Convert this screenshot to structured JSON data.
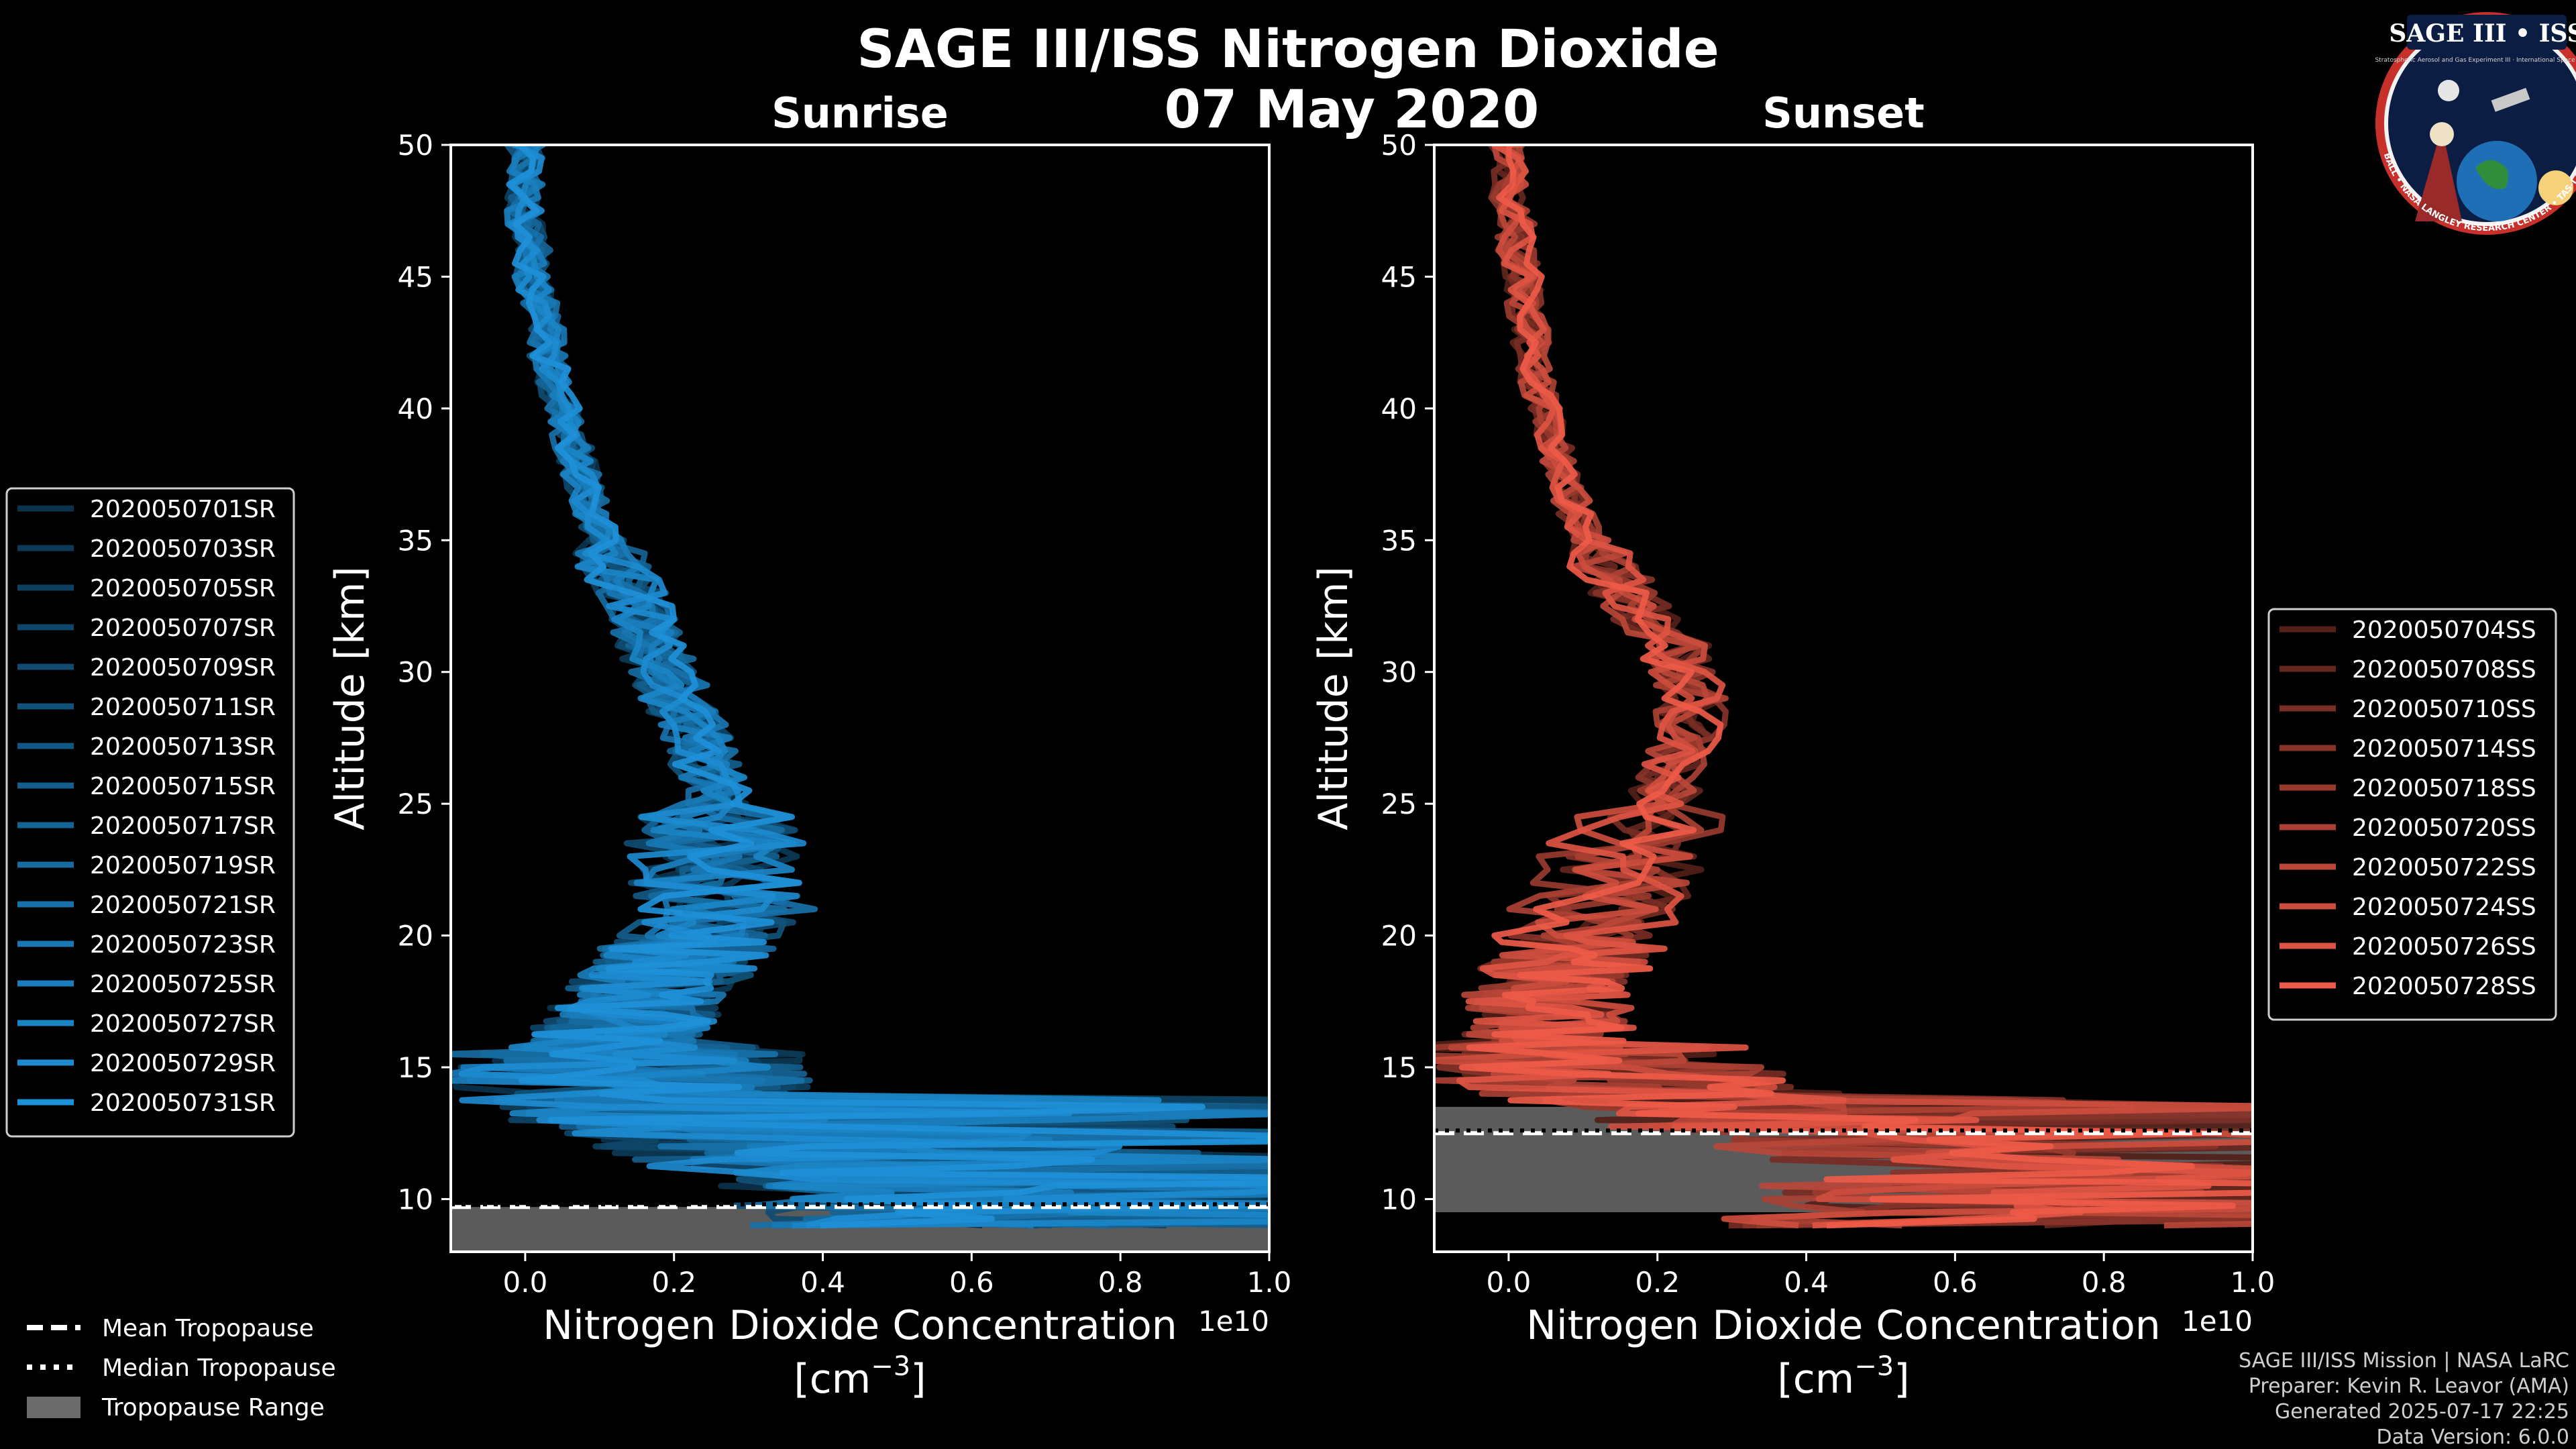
{
  "figure": {
    "title": "SAGE III/ISS Nitrogen Dioxide",
    "date": "07 May 2020"
  },
  "logo": {
    "title": "SAGE III • ISS",
    "subtitle": "Stratospheric Aerosol and Gas Experiment III · International Space Station",
    "ring_text": "BALL • NASA LANGLEY RESEARCH CENTER • TAS-I • ESA"
  },
  "colors": {
    "sunrise": "#1e90d8",
    "sunset": "#ee5a48",
    "tropopause_range": "#6b6b6b",
    "background": "#000000"
  },
  "chart_data": [
    {
      "type": "line",
      "panel": "sunrise",
      "title": "Sunrise",
      "xlabel": "Nitrogen Dioxide Concentration",
      "xlabel_unit": "[cm",
      "xlabel_exp": "−3",
      "xlabel_close": "]",
      "ylabel": "Altitude [km]",
      "offset_text": "1e10",
      "xlim": [
        -0.1,
        1.0
      ],
      "ylim": [
        8,
        50
      ],
      "xticks": [
        0.0,
        0.2,
        0.4,
        0.6,
        0.8,
        1.0
      ],
      "xtick_labels": [
        "0.0",
        "0.2",
        "0.4",
        "0.6",
        "0.8",
        "1.0"
      ],
      "yticks": [
        10,
        15,
        20,
        25,
        30,
        35,
        40,
        45,
        50
      ],
      "ytick_labels": [
        "10",
        "15",
        "20",
        "25",
        "30",
        "35",
        "40",
        "45",
        "50"
      ],
      "profile": {
        "altitude_km": [
          9,
          10,
          11,
          12,
          13,
          14,
          15,
          16,
          17,
          18,
          19,
          20,
          21,
          22,
          23,
          24,
          25,
          26,
          27,
          28,
          29,
          30,
          31,
          32,
          33,
          34,
          35,
          36,
          37,
          38,
          39,
          40,
          41,
          42,
          43,
          44,
          45,
          46,
          47,
          48,
          49,
          50
        ],
        "no2_1e10": [
          0.55,
          0.5,
          0.45,
          0.3,
          0.2,
          0.15,
          0.13,
          0.12,
          0.14,
          0.17,
          0.2,
          0.24,
          0.27,
          0.26,
          0.25,
          0.26,
          0.26,
          0.25,
          0.24,
          0.22,
          0.2,
          0.19,
          0.17,
          0.16,
          0.14,
          0.12,
          0.11,
          0.09,
          0.08,
          0.07,
          0.06,
          0.05,
          0.04,
          0.03,
          0.03,
          0.02,
          0.01,
          0.01,
          0.0,
          0.0,
          0.0,
          0.0
        ]
      },
      "tropopause": {
        "mean_km": 9.7,
        "median_km": 9.8,
        "range_km": [
          8.0,
          9.7
        ]
      },
      "series": [
        {
          "name": "2020050701SR"
        },
        {
          "name": "2020050703SR"
        },
        {
          "name": "2020050705SR"
        },
        {
          "name": "2020050707SR"
        },
        {
          "name": "2020050709SR"
        },
        {
          "name": "2020050711SR"
        },
        {
          "name": "2020050713SR"
        },
        {
          "name": "2020050715SR"
        },
        {
          "name": "2020050717SR"
        },
        {
          "name": "2020050719SR"
        },
        {
          "name": "2020050721SR"
        },
        {
          "name": "2020050723SR"
        },
        {
          "name": "2020050725SR"
        },
        {
          "name": "2020050727SR"
        },
        {
          "name": "2020050729SR"
        },
        {
          "name": "2020050731SR"
        }
      ]
    },
    {
      "type": "line",
      "panel": "sunset",
      "title": "Sunset",
      "xlabel": "Nitrogen Dioxide Concentration",
      "xlabel_unit": "[cm",
      "xlabel_exp": "−3",
      "xlabel_close": "]",
      "ylabel": "Altitude [km]",
      "offset_text": "1e10",
      "xlim": [
        -0.1,
        1.0
      ],
      "ylim": [
        8,
        50
      ],
      "xticks": [
        0.0,
        0.2,
        0.4,
        0.6,
        0.8,
        1.0
      ],
      "xtick_labels": [
        "0.0",
        "0.2",
        "0.4",
        "0.6",
        "0.8",
        "1.0"
      ],
      "yticks": [
        10,
        15,
        20,
        25,
        30,
        35,
        40,
        45,
        50
      ],
      "ytick_labels": [
        "10",
        "15",
        "20",
        "25",
        "30",
        "35",
        "40",
        "45",
        "50"
      ],
      "profile": {
        "altitude_km": [
          9,
          10,
          11,
          12,
          13,
          14,
          15,
          16,
          17,
          18,
          19,
          20,
          21,
          22,
          23,
          24,
          25,
          26,
          27,
          28,
          29,
          30,
          31,
          32,
          33,
          34,
          35,
          36,
          37,
          38,
          39,
          40,
          41,
          42,
          43,
          44,
          45,
          46,
          47,
          48,
          49,
          50
        ],
        "no2_1e10": [
          0.5,
          0.55,
          0.6,
          0.5,
          0.35,
          0.2,
          0.1,
          0.06,
          0.05,
          0.06,
          0.08,
          0.1,
          0.12,
          0.14,
          0.16,
          0.18,
          0.2,
          0.22,
          0.23,
          0.24,
          0.25,
          0.24,
          0.22,
          0.19,
          0.16,
          0.13,
          0.11,
          0.09,
          0.08,
          0.07,
          0.06,
          0.05,
          0.04,
          0.03,
          0.03,
          0.02,
          0.02,
          0.01,
          0.01,
          0.0,
          0.0,
          0.0
        ]
      },
      "tropopause": {
        "mean_km": 12.5,
        "median_km": 12.6,
        "range_km": [
          9.5,
          13.5
        ]
      },
      "series": [
        {
          "name": "2020050704SS"
        },
        {
          "name": "2020050708SS"
        },
        {
          "name": "2020050710SS"
        },
        {
          "name": "2020050714SS"
        },
        {
          "name": "2020050718SS"
        },
        {
          "name": "2020050720SS"
        },
        {
          "name": "2020050722SS"
        },
        {
          "name": "2020050724SS"
        },
        {
          "name": "2020050726SS"
        },
        {
          "name": "2020050728SS"
        }
      ]
    }
  ],
  "tropopause_legend": {
    "mean": "Mean Tropopause",
    "median": "Median Tropopause",
    "range": "Tropopause Range"
  },
  "credits": {
    "line1": "SAGE III/ISS Mission | NASA LaRC",
    "line2": "Preparer: Kevin R. Leavor (AMA)",
    "line3": "Generated 2025-07-17 22:25",
    "line4": "Data Version: 6.0.0"
  }
}
